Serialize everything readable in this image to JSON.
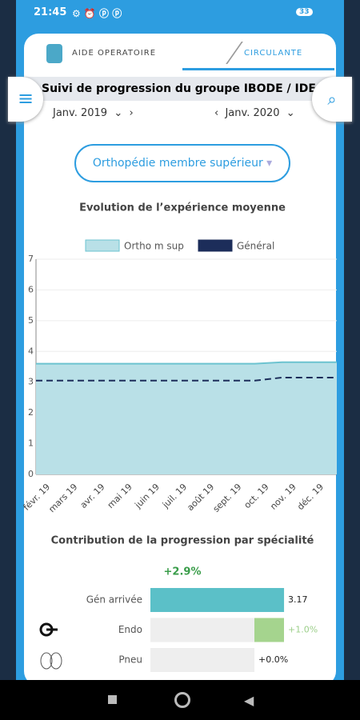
{
  "status_bar": {
    "time": "21:45",
    "battery": "33"
  },
  "tabs": [
    {
      "label": "AIDE OPERATOIRE"
    },
    {
      "label": "CIRCULANTE"
    }
  ],
  "header": {
    "title": "Suivi de progression du groupe IBODE / IDE"
  },
  "date_range": {
    "start": "Janv. 2019",
    "end": "Janv. 2020"
  },
  "specialty_select": "Orthopédie membre supérieur",
  "chart_data": {
    "type": "area",
    "title": "Evolution de l’expérience moyenne",
    "categories": [
      "févr. 19",
      "mars 19",
      "avr. 19",
      "mai 19",
      "juin 19",
      "juil. 19",
      "août 19",
      "sept. 19",
      "oct. 19",
      "nov. 19",
      "déc. 19",
      null
    ],
    "series": [
      {
        "name": "Ortho m sup",
        "color": "#b9e0e7",
        "values": [
          3.6,
          3.6,
          3.6,
          3.6,
          3.6,
          3.6,
          3.6,
          3.6,
          3.6,
          3.65,
          3.65,
          3.65
        ]
      },
      {
        "name": "Général",
        "color": "#1c2d5a",
        "values": [
          3.05,
          3.05,
          3.05,
          3.05,
          3.05,
          3.05,
          3.05,
          3.05,
          3.05,
          3.15,
          3.15,
          3.15
        ]
      }
    ],
    "ylim": [
      0,
      7
    ],
    "yticks": [
      0,
      1,
      2,
      3,
      4,
      5,
      6,
      7
    ],
    "grid": true
  },
  "contribution": {
    "title": "Contribution de la progression par spécialité",
    "total": "+2.9%",
    "items": [
      {
        "label": "Gén arrivée",
        "value": 3.17,
        "color": "#5bc0c8"
      },
      {
        "label": "Endo",
        "value": 1.0,
        "value_label": "+1.0%",
        "color": "#a5d48e"
      },
      {
        "label": "Pneu",
        "value": 0.0,
        "value_label": "+0.0%",
        "color": "#a5d48e"
      }
    ]
  }
}
